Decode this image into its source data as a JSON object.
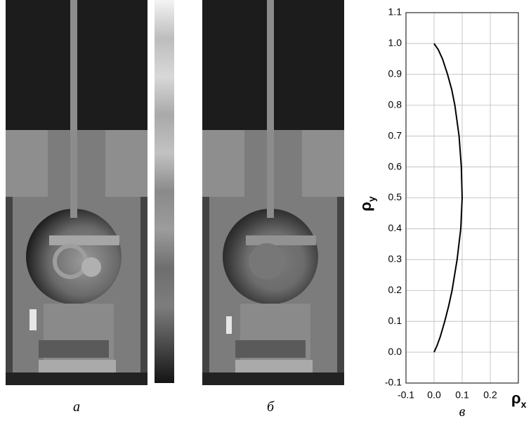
{
  "panels": {
    "a": "а",
    "b": "б",
    "c": "в"
  },
  "chart_data": {
    "type": "line",
    "ylabel": "ρ",
    "ylabel_sub": "y",
    "xlabel": "ρ",
    "xlabel_sub": "x",
    "x": [
      0,
      0.01,
      0.022,
      0.038,
      0.052,
      0.064,
      0.082,
      0.095,
      0.1,
      0.097,
      0.089,
      0.074,
      0.063,
      0.048,
      0.03,
      0.015,
      0
    ],
    "values": [
      0,
      0.02,
      0.05,
      0.1,
      0.15,
      0.2,
      0.3,
      0.4,
      0.5,
      0.6,
      0.7,
      0.8,
      0.85,
      0.9,
      0.95,
      0.98,
      1.0
    ],
    "color": "#000000",
    "xlim": [
      -0.1,
      0.3
    ],
    "ylim": [
      -0.1,
      1.1
    ],
    "xticks": [
      -0.1,
      {
        "value": 0,
        "label": "0.0"
      },
      0.1,
      0.2
    ],
    "yticks": [
      -0.1,
      {
        "value": 0,
        "label": "0.0"
      },
      0.1,
      0.2,
      0.3,
      0.4,
      0.5,
      0.6,
      0.7,
      0.8,
      0.9,
      {
        "value": 1,
        "label": "1.0"
      },
      1.1
    ],
    "grid": true
  }
}
